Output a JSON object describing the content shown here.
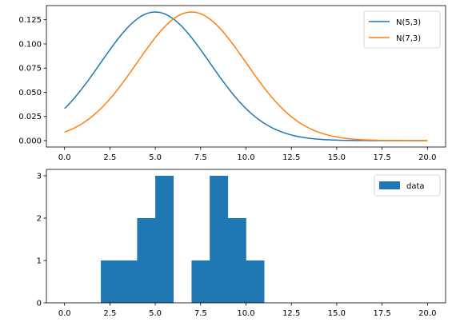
{
  "chart_data": [
    {
      "type": "line",
      "title": "",
      "xlabel": "",
      "ylabel": "",
      "xlim": [
        -1,
        21
      ],
      "ylim": [
        -0.0066,
        0.1396
      ],
      "xticks": [
        0,
        2.5,
        5,
        7.5,
        10,
        12.5,
        15,
        17.5,
        20
      ],
      "xtick_labels": [
        "0.0",
        "2.5",
        "5.0",
        "7.5",
        "10.0",
        "12.5",
        "15.0",
        "17.5",
        "20.0"
      ],
      "yticks": [
        0,
        0.025,
        0.05,
        0.075,
        0.1,
        0.125
      ],
      "ytick_labels": [
        "0.000",
        "0.025",
        "0.050",
        "0.075",
        "0.100",
        "0.125"
      ],
      "grid": false,
      "legend_position": "upper-right",
      "series": [
        {
          "name": "N(5,3)",
          "color": "#1f77b4",
          "distribution": "normal",
          "mean": 5,
          "std": 3,
          "x_range": [
            0,
            20
          ]
        },
        {
          "name": "N(7,3)",
          "color": "#ff7f0e",
          "distribution": "normal",
          "mean": 7,
          "std": 3,
          "x_range": [
            0,
            20
          ]
        }
      ]
    },
    {
      "type": "bar",
      "title": "",
      "xlabel": "",
      "ylabel": "",
      "xlim": [
        -1,
        21
      ],
      "ylim": [
        0,
        3.15
      ],
      "xticks": [
        0,
        2.5,
        5,
        7.5,
        10,
        12.5,
        15,
        17.5,
        20
      ],
      "xtick_labels": [
        "0.0",
        "2.5",
        "5.0",
        "7.5",
        "10.0",
        "12.5",
        "15.0",
        "17.5",
        "20.0"
      ],
      "yticks": [
        0,
        1,
        2,
        3
      ],
      "ytick_labels": [
        "0",
        "1",
        "2",
        "3"
      ],
      "grid": false,
      "legend_position": "upper-right",
      "series": [
        {
          "name": "data",
          "color": "#1f77b4",
          "bin_edges": [
            0,
            1,
            2,
            3,
            4,
            5,
            6,
            7,
            8,
            9,
            10,
            11,
            12,
            13,
            14,
            15,
            16,
            17,
            18,
            19,
            20
          ],
          "counts": [
            0,
            0,
            1,
            1,
            2,
            3,
            0,
            1,
            3,
            2,
            1,
            0,
            0,
            0,
            0,
            0,
            0,
            0,
            0,
            0
          ]
        }
      ]
    }
  ]
}
